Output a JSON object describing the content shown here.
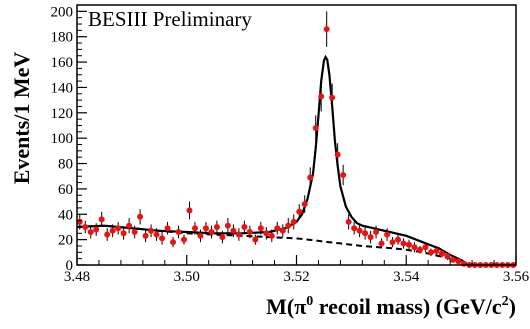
{
  "chart_data": {
    "type": "scatter",
    "title": "",
    "annotation": "BESIII Preliminary",
    "xlabel": {
      "main": "M(π",
      "sup1": "0",
      "middle": " recoil mass) (GeV/c",
      "sup2": "2",
      "end": ")"
    },
    "ylabel": "Events/1 MeV",
    "xlim": [
      3.48,
      3.56
    ],
    "ylim": [
      0,
      205
    ],
    "x_ticks": [
      3.48,
      3.5,
      3.52,
      3.54,
      3.56
    ],
    "x_tick_labels": [
      "3.48",
      "3.50",
      "3.52",
      "3.54",
      "3.56"
    ],
    "y_ticks": [
      0,
      20,
      40,
      60,
      80,
      100,
      120,
      140,
      160,
      180,
      200
    ],
    "y_tick_labels": [
      "0",
      "20",
      "40",
      "60",
      "80",
      "100",
      "120",
      "140",
      "160",
      "180",
      "200"
    ],
    "grid": false,
    "legend": "none",
    "colors": {
      "data": "#ee1111",
      "fit": "#000000",
      "background": "#000000"
    },
    "series": [
      {
        "kind": "points-with-errors",
        "points": [
          [
            3.4805,
            34,
            6
          ],
          [
            3.4815,
            30,
            5
          ],
          [
            3.4825,
            26,
            5
          ],
          [
            3.4835,
            28,
            5
          ],
          [
            3.4845,
            36,
            6
          ],
          [
            3.4855,
            24,
            5
          ],
          [
            3.4865,
            27,
            5
          ],
          [
            3.4875,
            29,
            5
          ],
          [
            3.4885,
            25,
            5
          ],
          [
            3.4895,
            31,
            6
          ],
          [
            3.4905,
            26,
            5
          ],
          [
            3.4915,
            38,
            6
          ],
          [
            3.4925,
            23,
            5
          ],
          [
            3.4935,
            27,
            5
          ],
          [
            3.4945,
            24,
            5
          ],
          [
            3.4955,
            21,
            5
          ],
          [
            3.4965,
            29,
            5
          ],
          [
            3.4975,
            18,
            4
          ],
          [
            3.4985,
            26,
            5
          ],
          [
            3.4995,
            20,
            4
          ],
          [
            3.5005,
            43,
            7
          ],
          [
            3.5015,
            29,
            5
          ],
          [
            3.5025,
            23,
            5
          ],
          [
            3.5035,
            29,
            5
          ],
          [
            3.5045,
            26,
            5
          ],
          [
            3.5055,
            30,
            5
          ],
          [
            3.5065,
            22,
            5
          ],
          [
            3.5075,
            31,
            6
          ],
          [
            3.5085,
            27,
            5
          ],
          [
            3.5095,
            24,
            5
          ],
          [
            3.5105,
            30,
            5
          ],
          [
            3.5115,
            26,
            5
          ],
          [
            3.5125,
            20,
            4
          ],
          [
            3.5135,
            29,
            5
          ],
          [
            3.5145,
            25,
            5
          ],
          [
            3.5155,
            23,
            5
          ],
          [
            3.5165,
            29,
            5
          ],
          [
            3.5175,
            27,
            5
          ],
          [
            3.5185,
            31,
            6
          ],
          [
            3.5195,
            34,
            6
          ],
          [
            3.5205,
            42,
            6
          ],
          [
            3.5215,
            48,
            7
          ],
          [
            3.5225,
            69,
            8
          ],
          [
            3.5235,
            108,
            10
          ],
          [
            3.5245,
            133,
            12
          ],
          [
            3.5255,
            186,
            14
          ],
          [
            3.5265,
            132,
            11
          ],
          [
            3.5275,
            87,
            9
          ],
          [
            3.5285,
            71,
            8
          ],
          [
            3.5295,
            34,
            6
          ],
          [
            3.5305,
            29,
            5
          ],
          [
            3.5315,
            27,
            5
          ],
          [
            3.5325,
            25,
            5
          ],
          [
            3.5335,
            22,
            5
          ],
          [
            3.5345,
            26,
            5
          ],
          [
            3.5355,
            17,
            4
          ],
          [
            3.5365,
            24,
            5
          ],
          [
            3.5375,
            18,
            4
          ],
          [
            3.5385,
            20,
            4
          ],
          [
            3.5395,
            17,
            4
          ],
          [
            3.5405,
            16,
            4
          ],
          [
            3.5415,
            14,
            4
          ],
          [
            3.5425,
            12,
            3
          ],
          [
            3.5435,
            14,
            4
          ],
          [
            3.5445,
            10,
            3
          ],
          [
            3.5455,
            11,
            3
          ],
          [
            3.5465,
            9,
            3
          ],
          [
            3.5475,
            7,
            3
          ],
          [
            3.5485,
            4,
            2
          ],
          [
            3.5495,
            3,
            2
          ],
          [
            3.5505,
            1,
            1
          ],
          [
            3.5515,
            0,
            0
          ],
          [
            3.5525,
            0,
            0
          ],
          [
            3.5535,
            0,
            0
          ],
          [
            3.5545,
            0,
            0
          ],
          [
            3.5555,
            0,
            0
          ],
          [
            3.5565,
            0,
            0
          ],
          [
            3.5575,
            0,
            0
          ],
          [
            3.5585,
            0,
            0
          ],
          [
            3.5595,
            0,
            0
          ]
        ]
      },
      {
        "kind": "fit-total",
        "x": [
          3.48,
          3.485,
          3.49,
          3.495,
          3.5,
          3.505,
          3.51,
          3.515,
          3.518,
          3.52,
          3.521,
          3.522,
          3.523,
          3.5235,
          3.524,
          3.5245,
          3.525,
          3.5253,
          3.5256,
          3.526,
          3.5265,
          3.527,
          3.5275,
          3.528,
          3.529,
          3.53,
          3.531,
          3.532,
          3.534,
          3.537,
          3.54,
          3.543,
          3.546,
          3.548,
          3.55,
          3.551,
          3.553,
          3.556,
          3.56
        ],
        "y": [
          30,
          31,
          29,
          27,
          26,
          25,
          25,
          26,
          29,
          34,
          40,
          52,
          72,
          92,
          118,
          145,
          161,
          164,
          162,
          150,
          125,
          98,
          78,
          62,
          46,
          38,
          33,
          31,
          29,
          26,
          23,
          18,
          13,
          8,
          4,
          1,
          0,
          0,
          0
        ]
      },
      {
        "kind": "fit-background",
        "x": [
          3.48,
          3.485,
          3.49,
          3.495,
          3.5,
          3.505,
          3.51,
          3.515,
          3.52,
          3.522,
          3.524,
          3.526,
          3.528,
          3.53,
          3.532,
          3.535,
          3.538,
          3.54,
          3.543,
          3.546,
          3.548,
          3.55,
          3.551,
          3.553,
          3.556,
          3.56
        ],
        "y": [
          30,
          31,
          29,
          27,
          25,
          24,
          23,
          22,
          21,
          20,
          19,
          18,
          17,
          16,
          15,
          14,
          13,
          12,
          10,
          7,
          5,
          3,
          1,
          0,
          0,
          0
        ]
      }
    ]
  }
}
